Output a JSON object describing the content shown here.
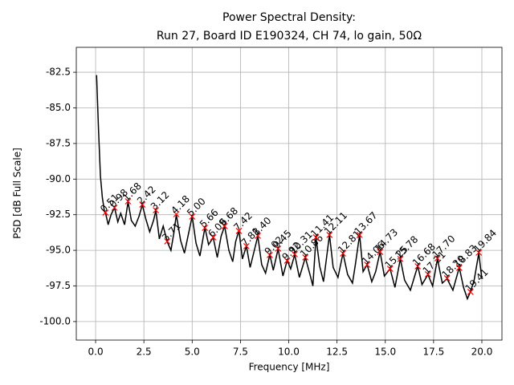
{
  "chart_data": {
    "type": "line",
    "title": "Power Spectral Density:",
    "subtitle": "Run 27, Board ID E190324, CH 74, lo gain, 50Ω",
    "x_label": "Frequency [MHz]",
    "y_label": "PSD [dB Full Scale]",
    "xlim": [
      -1,
      21.04
    ],
    "ylim": [
      -101.3,
      -80.75
    ],
    "xticks": [
      {
        "value": 0,
        "label": "0.0"
      },
      2.5,
      {
        "value": 5,
        "label": "5.0"
      },
      7.5,
      {
        "value": 10,
        "label": "10.0"
      },
      12.5,
      {
        "value": 15,
        "label": "15.0"
      },
      17.5,
      {
        "value": 20,
        "label": "20.0"
      }
    ],
    "yticks": [
      {
        "value": -100,
        "label": "-100.0"
      },
      -97.5,
      {
        "value": -95,
        "label": "-95.0"
      },
      -92.5,
      {
        "value": -90,
        "label": "-90.0"
      },
      -87.5,
      {
        "value": -85,
        "label": "-85.0"
      },
      -82.5
    ],
    "grid": true,
    "series": [
      {
        "color": "#000000",
        "x": [
          0.05,
          0.15,
          0.25,
          0.35,
          0.46,
          0.51,
          0.65,
          0.8,
          0.98,
          1.15,
          1.3,
          1.5,
          1.68,
          1.85,
          2.05,
          2.25,
          2.42,
          2.6,
          2.8,
          3.0,
          3.12,
          3.3,
          3.5,
          3.71,
          3.9,
          4.05,
          4.18,
          4.4,
          4.6,
          4.8,
          5.0,
          5.2,
          5.4,
          5.66,
          5.85,
          6.09,
          6.3,
          6.5,
          6.68,
          6.9,
          7.1,
          7.25,
          7.42,
          7.6,
          7.81,
          8.0,
          8.2,
          8.4,
          8.6,
          8.8,
          9.02,
          9.2,
          9.45,
          9.7,
          9.92,
          10.1,
          10.31,
          10.55,
          10.86,
          11.1,
          11.25,
          11.41,
          11.6,
          11.8,
          12.11,
          12.3,
          12.55,
          12.81,
          13.05,
          13.3,
          13.45,
          13.67,
          13.85,
          14.06,
          14.3,
          14.5,
          14.73,
          14.95,
          15.25,
          15.5,
          15.78,
          16.0,
          16.3,
          16.5,
          16.68,
          16.9,
          17.21,
          17.45,
          17.7,
          17.95,
          18.2,
          18.5,
          18.83,
          19.05,
          19.25,
          19.41,
          19.6,
          19.84,
          20.0
        ],
        "values": [
          -82.7,
          -86.5,
          -89.8,
          -91.3,
          -92.3,
          -92.35,
          -93.2,
          -92.5,
          -92.0,
          -93.0,
          -92.4,
          -93.2,
          -91.6,
          -92.9,
          -93.3,
          -92.6,
          -91.8,
          -92.8,
          -93.7,
          -92.9,
          -92.2,
          -94.2,
          -93.3,
          -94.4,
          -95.0,
          -93.8,
          -92.5,
          -94.3,
          -95.2,
          -93.9,
          -92.6,
          -94.5,
          -95.4,
          -93.4,
          -94.6,
          -94.1,
          -95.5,
          -94.0,
          -93.3,
          -95.0,
          -95.8,
          -94.4,
          -93.6,
          -95.6,
          -94.7,
          -96.2,
          -95.1,
          -94.0,
          -96.0,
          -96.6,
          -95.3,
          -96.4,
          -94.9,
          -96.8,
          -95.7,
          -96.3,
          -95.3,
          -96.9,
          -95.5,
          -96.7,
          -97.5,
          -94.1,
          -96.1,
          -97.2,
          -93.9,
          -96.2,
          -96.9,
          -95.2,
          -96.7,
          -97.3,
          -96.0,
          -93.9,
          -96.5,
          -96.0,
          -97.2,
          -96.5,
          -95.1,
          -96.8,
          -96.3,
          -97.6,
          -95.6,
          -97.1,
          -97.8,
          -96.9,
          -96.1,
          -97.4,
          -96.7,
          -97.5,
          -95.6,
          -97.3,
          -97.0,
          -97.8,
          -96.2,
          -97.6,
          -98.4,
          -97.9,
          -97.1,
          -95.2,
          -97.0
        ]
      }
    ],
    "peaks": {
      "color": "#ff0000",
      "x": [
        0.51,
        0.98,
        1.68,
        2.42,
        3.12,
        3.71,
        4.18,
        5.0,
        5.66,
        6.09,
        6.68,
        7.42,
        7.81,
        8.4,
        9.02,
        9.45,
        9.92,
        10.31,
        10.86,
        11.41,
        12.11,
        12.81,
        13.67,
        14.06,
        14.73,
        15.25,
        15.78,
        16.68,
        17.21,
        17.7,
        18.2,
        18.83,
        19.41,
        19.84
      ],
      "values": [
        -92.35,
        -92.01,
        -91.56,
        -91.79,
        -92.18,
        -94.37,
        -92.46,
        -92.63,
        -93.42,
        -94.09,
        -93.3,
        -93.64,
        -94.71,
        -93.98,
        -95.33,
        -94.88,
        -95.72,
        -95.27,
        -95.5,
        -94.09,
        -93.92,
        -95.22,
        -93.92,
        -96.01,
        -95.11,
        -96.29,
        -95.61,
        -96.12,
        -96.68,
        -95.56,
        -96.96,
        -96.23,
        -97.92,
        -95.16
      ],
      "labels": [
        "0.51",
        "0.98",
        "1.68",
        "2.42",
        "3.12",
        "3.71",
        "4.18",
        "5.00",
        "5.66",
        "6.09",
        "6.68",
        "7.42",
        "7.81",
        "8.40",
        "9.02",
        "9.45",
        "9.92",
        "10.31",
        "10.86",
        "11.41",
        "12.11",
        "12.81",
        "13.67",
        "14.06",
        "14.73",
        "15.25",
        "15.78",
        "16.68",
        "17.21",
        "17.70",
        "18.20",
        "18.83",
        "19.41",
        "19.84"
      ]
    }
  }
}
